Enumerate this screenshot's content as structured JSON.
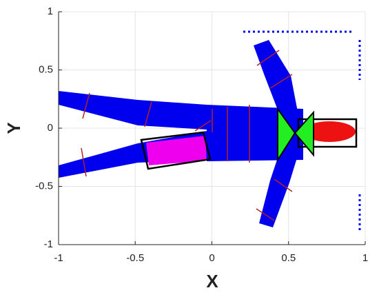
{
  "chart_data": {
    "type": "scatter",
    "x_label": "X",
    "y_label": "Y",
    "xlim": [
      -1,
      1
    ],
    "ylim": [
      -1,
      1
    ],
    "xticks": [
      -1,
      -0.5,
      0,
      0.5,
      1
    ],
    "yticks": [
      -1,
      -0.5,
      0,
      0.5,
      1
    ],
    "grid": true
  }
}
